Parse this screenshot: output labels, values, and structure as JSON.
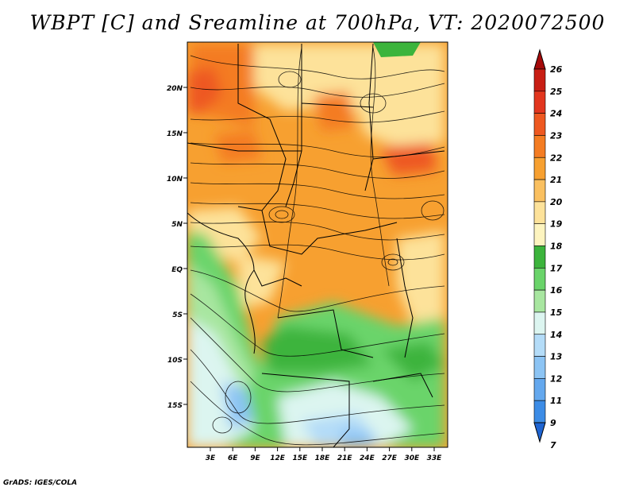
{
  "title": "WBPT [C] and Sreamline at 700hPa, VT: 2020072500",
  "credit": "GrADS: IGES/COLA",
  "map": {
    "lat_labels": [
      "20N",
      "15N",
      "10N",
      "5N",
      "EQ",
      "5S",
      "10S",
      "15S"
    ],
    "lon_labels": [
      "3E",
      "6E",
      "9E",
      "12E",
      "15E",
      "18E",
      "21E",
      "24E",
      "27E",
      "30E",
      "33E"
    ],
    "lat_range": [
      -20,
      24
    ],
    "lon_range": [
      0,
      36
    ]
  },
  "colorbar": {
    "labels": [
      "26",
      "25",
      "24",
      "23",
      "22",
      "21",
      "20",
      "19",
      "18",
      "17",
      "16",
      "15",
      "14",
      "13",
      "12",
      "11",
      "9",
      "7"
    ],
    "colors": [
      "#a50a0a",
      "#c81e14",
      "#e2361e",
      "#ee5820",
      "#f47c22",
      "#f7a030",
      "#fac060",
      "#fde29a",
      "#fdf4bf",
      "#3cb43c",
      "#6ad46a",
      "#a8e6a0",
      "#dcf5f0",
      "#b4dcf8",
      "#8cc4f4",
      "#64a8ee",
      "#3c8ce6",
      "#1e64d2"
    ]
  }
}
